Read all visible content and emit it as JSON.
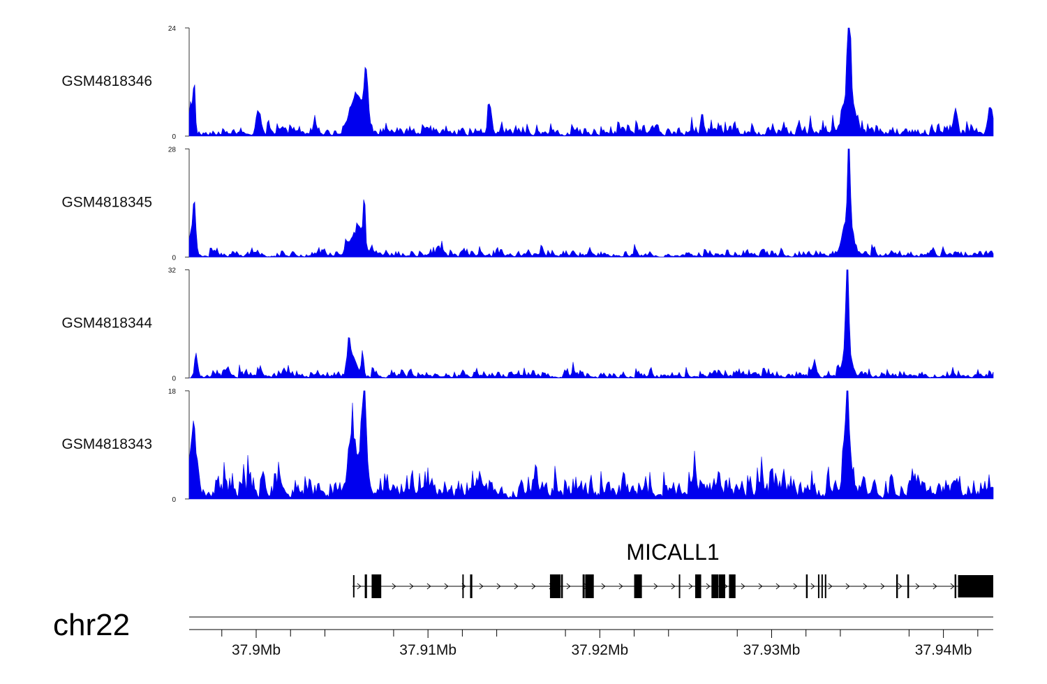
{
  "chart_data": {
    "type": "area",
    "title": "",
    "fill_color": "#0000ee",
    "chromosome": "chr22",
    "x_range_mb": [
      37.8961,
      37.9429
    ],
    "x_ticks": [
      {
        "value": 37.9,
        "label": "37.9Mb"
      },
      {
        "value": 37.91,
        "label": "37.91Mb"
      },
      {
        "value": 37.92,
        "label": "37.92Mb"
      },
      {
        "value": 37.93,
        "label": "37.93Mb"
      },
      {
        "value": 37.94,
        "label": "37.94Mb"
      }
    ],
    "x_minor_ticks": [
      37.898,
      37.902,
      37.904,
      37.908,
      37.912,
      37.914,
      37.918,
      37.922,
      37.924,
      37.928,
      37.932,
      37.934,
      37.938,
      37.942
    ],
    "series": [
      {
        "name": "GSM4818346",
        "ylim": [
          0,
          24
        ],
        "ytick_labels": [
          "0",
          "24"
        ],
        "peaks": [
          {
            "x": 37.9064,
            "h": 12.5,
            "w": 0.00012
          },
          {
            "x": 37.906,
            "h": 6.5,
            "w": 0.00025
          },
          {
            "x": 37.9056,
            "h": 4.5,
            "w": 0.0003
          },
          {
            "x": 37.9345,
            "h": 23.8,
            "w": 9e-05
          },
          {
            "x": 37.9345,
            "h": 9.0,
            "w": 0.0003
          },
          {
            "x": 37.8964,
            "h": 9.5,
            "w": 6e-05
          },
          {
            "x": 37.8962,
            "h": 6.0,
            "w": 0.00015
          },
          {
            "x": 37.9001,
            "h": 5.5,
            "w": 0.00012
          },
          {
            "x": 37.9136,
            "h": 6.0,
            "w": 0.00012
          },
          {
            "x": 37.9427,
            "h": 6.0,
            "w": 0.00012
          },
          {
            "x": 37.9407,
            "h": 5.5,
            "w": 0.00012
          }
        ],
        "noise": 2.0,
        "seed": 11
      },
      {
        "name": "GSM4818345",
        "ylim": [
          0,
          28
        ],
        "ytick_labels": [
          "0",
          "28"
        ],
        "peaks": [
          {
            "x": 37.8964,
            "h": 12.0,
            "w": 8e-05
          },
          {
            "x": 37.8962,
            "h": 5.0,
            "w": 0.0002
          },
          {
            "x": 37.9063,
            "h": 12.5,
            "w": 5e-05
          },
          {
            "x": 37.9061,
            "h": 6.0,
            "w": 0.00022
          },
          {
            "x": 37.9056,
            "h": 4.0,
            "w": 0.0003
          },
          {
            "x": 37.9345,
            "h": 27.8,
            "w": 7e-05
          },
          {
            "x": 37.9345,
            "h": 7.0,
            "w": 0.00025
          },
          {
            "x": 37.9342,
            "h": 4.0,
            "w": 0.0002
          }
        ],
        "noise": 1.5,
        "seed": 23
      },
      {
        "name": "GSM4818344",
        "ylim": [
          0,
          32
        ],
        "ytick_labels": [
          "0",
          "32"
        ],
        "peaks": [
          {
            "x": 37.9054,
            "h": 10.0,
            "w": 0.0001
          },
          {
            "x": 37.9057,
            "h": 5.0,
            "w": 0.0002
          },
          {
            "x": 37.9062,
            "h": 8.0,
            "w": 6e-05
          },
          {
            "x": 37.9344,
            "h": 31.8,
            "w": 8e-05
          },
          {
            "x": 37.9344,
            "h": 7.5,
            "w": 0.00025
          },
          {
            "x": 37.8965,
            "h": 7.0,
            "w": 8e-05
          },
          {
            "x": 37.9325,
            "h": 5.0,
            "w": 8e-05
          }
        ],
        "noise": 1.8,
        "seed": 37
      },
      {
        "name": "GSM4818343",
        "ylim": [
          0,
          18
        ],
        "ytick_labels": [
          "0",
          "18"
        ],
        "peaks": [
          {
            "x": 37.9063,
            "h": 12.8,
            "w": 0.00012
          },
          {
            "x": 37.9061,
            "h": 6.0,
            "w": 0.0003
          },
          {
            "x": 37.9055,
            "h": 6.5,
            "w": 0.0002
          },
          {
            "x": 37.9344,
            "h": 17.9,
            "w": 6e-05
          },
          {
            "x": 37.9344,
            "h": 8.0,
            "w": 0.00022
          },
          {
            "x": 37.8964,
            "h": 8.0,
            "w": 0.0001
          },
          {
            "x": 37.8962,
            "h": 6.0,
            "w": 0.0002
          }
        ],
        "noise": 3.5,
        "seed": 51
      }
    ],
    "gene_track": {
      "gene_name": "MICALL1",
      "strand": "+",
      "start_mb": 37.9056,
      "end_mb": 37.9429,
      "exons": [
        {
          "start": 37.90564,
          "end": 37.90568,
          "type": "utr"
        },
        {
          "start": 37.90632,
          "end": 37.90645,
          "type": "cds"
        },
        {
          "start": 37.90672,
          "end": 37.90728,
          "type": "cds"
        },
        {
          "start": 37.912,
          "end": 37.91206,
          "type": "cds"
        },
        {
          "start": 37.91245,
          "end": 37.91258,
          "type": "cds"
        },
        {
          "start": 37.9171,
          "end": 37.91772,
          "type": "cds"
        },
        {
          "start": 37.91775,
          "end": 37.91785,
          "type": "cds"
        },
        {
          "start": 37.919,
          "end": 37.91912,
          "type": "cds"
        },
        {
          "start": 37.91915,
          "end": 37.91965,
          "type": "cds"
        },
        {
          "start": 37.922,
          "end": 37.92245,
          "type": "cds"
        },
        {
          "start": 37.9246,
          "end": 37.92468,
          "type": "cds"
        },
        {
          "start": 37.92555,
          "end": 37.9259,
          "type": "cds"
        },
        {
          "start": 37.9265,
          "end": 37.9269,
          "type": "cds"
        },
        {
          "start": 37.92692,
          "end": 37.9273,
          "type": "cds"
        },
        {
          "start": 37.92752,
          "end": 37.9279,
          "type": "cds"
        },
        {
          "start": 37.932,
          "end": 37.9321,
          "type": "cds"
        },
        {
          "start": 37.9327,
          "end": 37.93278,
          "type": "cds"
        },
        {
          "start": 37.9329,
          "end": 37.93298,
          "type": "cds"
        },
        {
          "start": 37.9331,
          "end": 37.93318,
          "type": "cds"
        },
        {
          "start": 37.93725,
          "end": 37.93735,
          "type": "cds"
        },
        {
          "start": 37.9379,
          "end": 37.938,
          "type": "cds"
        },
        {
          "start": 37.94065,
          "end": 37.94075,
          "type": "cds"
        },
        {
          "start": 37.94085,
          "end": 37.9429,
          "type": "utr"
        }
      ]
    }
  }
}
